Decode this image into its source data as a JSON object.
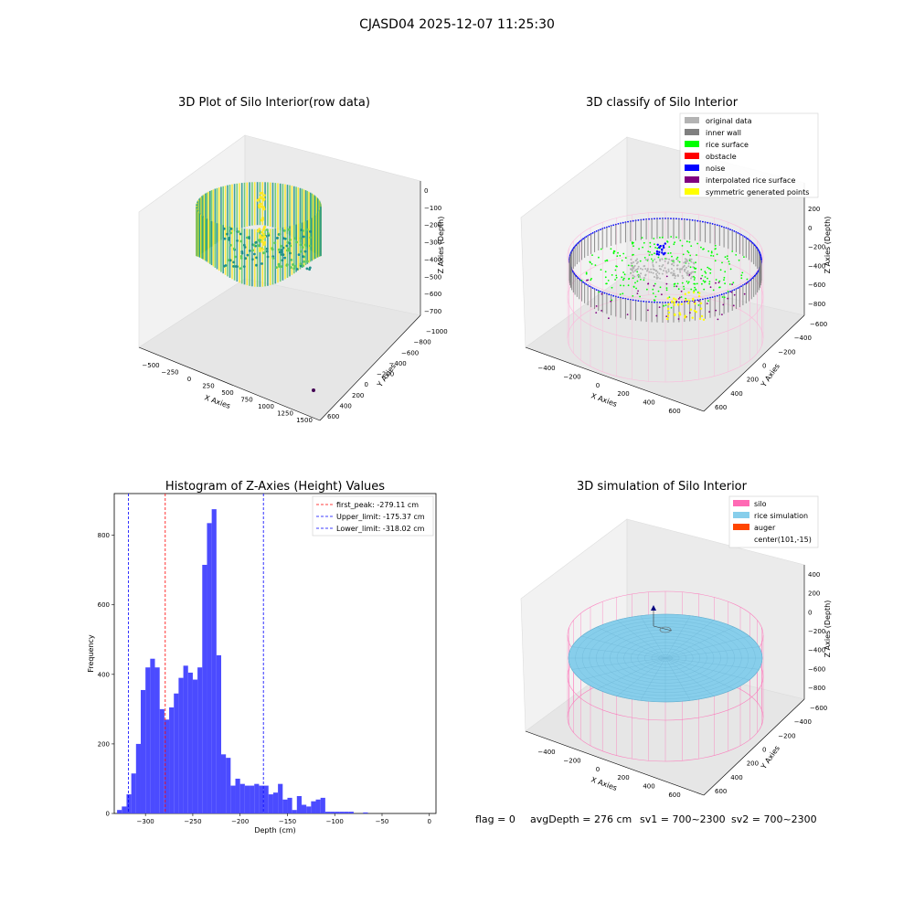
{
  "suptitle": "CJASD04 2025-12-07 11:25:30",
  "status_line": {
    "flag": "flag = 0",
    "avg_depth": "avgDepth = 276 cm",
    "sv1": "sv1 = 700~2300",
    "sv2": "sv2 = 700~2300"
  },
  "chart_data": [
    {
      "type": "scatter",
      "title": "3D Plot of Silo Interior(row data)",
      "xlabel": "X Axies",
      "ylabel": "Y Axies",
      "zlabel": "Z Axies (Depth)",
      "x_ticks": [
        "−500",
        "−250",
        "0",
        "250",
        "500",
        "750",
        "1000",
        "1250",
        "1500"
      ],
      "y_ticks": [
        "−1000",
        "−800",
        "−600",
        "−400",
        "−200",
        "0",
        "200",
        "400",
        "600"
      ],
      "z_ticks": [
        "−700",
        "−600",
        "−500",
        "−400",
        "−300",
        "−200",
        "−100",
        "0"
      ],
      "colors": {
        "high": "#fde725",
        "mid": "#21918c",
        "low": "#5ec962",
        "outlier": "#440154"
      }
    },
    {
      "type": "scatter",
      "title": "3D classify of Silo Interior",
      "xlabel": "X Axies",
      "ylabel": "Y Axies",
      "zlabel": "Z Axies (Depth)",
      "x_ticks": [
        "−400",
        "−200",
        "0",
        "200",
        "400",
        "600"
      ],
      "y_ticks": [
        "−600",
        "−400",
        "−200",
        "0",
        "200",
        "400",
        "600"
      ],
      "z_ticks": [
        "−800",
        "−600",
        "−400",
        "−200",
        "0",
        "200"
      ],
      "legend": [
        {
          "label": "original data",
          "color": "#b3b3b3"
        },
        {
          "label": "inner wall",
          "color": "#808080"
        },
        {
          "label": "rice surface",
          "color": "#00ff00"
        },
        {
          "label": "obstacle",
          "color": "#ff0000"
        },
        {
          "label": "noise",
          "color": "#0000ff"
        },
        {
          "label": "interpolated rice surface",
          "color": "#800080"
        },
        {
          "label": "symmetric generated points",
          "color": "#ffff00"
        }
      ],
      "legend_position": "top-right"
    },
    {
      "type": "bar",
      "title": "Histogram of Z-Axies (Height) Values",
      "xlabel": "Depth (cm)",
      "ylabel": "Frequency",
      "xlim": [
        -333,
        7
      ],
      "ylim": [
        0,
        920
      ],
      "bar_color": "#4b4bff",
      "x_ticks": [
        -300,
        -250,
        -200,
        -150,
        -100,
        -50,
        0
      ],
      "y_ticks": [
        0,
        200,
        400,
        600,
        800
      ],
      "bin_width": 5,
      "bins_start": [
        -330,
        -325,
        -320,
        -315,
        -310,
        -305,
        -300,
        -295,
        -290,
        -285,
        -280,
        -275,
        -270,
        -265,
        -260,
        -255,
        -250,
        -245,
        -240,
        -235,
        -230,
        -225,
        -220,
        -215,
        -210,
        -205,
        -200,
        -195,
        -190,
        -185,
        -180,
        -175,
        -170,
        -165,
        -160,
        -155,
        -150,
        -145,
        -140,
        -135,
        -130,
        -125,
        -120,
        -115,
        -110,
        -105,
        -100,
        -95,
        -90,
        -85,
        -80,
        -75,
        -70,
        -65,
        -60,
        -55,
        -50,
        -45,
        -40,
        -35,
        -30,
        -25,
        -20,
        -15,
        -10,
        -5
      ],
      "values": [
        10,
        20,
        55,
        115,
        200,
        355,
        420,
        445,
        420,
        300,
        270,
        305,
        345,
        390,
        425,
        405,
        385,
        420,
        715,
        835,
        875,
        455,
        170,
        160,
        80,
        100,
        85,
        80,
        80,
        85,
        80,
        80,
        55,
        60,
        85,
        40,
        45,
        10,
        50,
        25,
        20,
        35,
        40,
        45,
        5,
        5,
        5,
        5,
        5,
        5,
        0,
        0,
        3,
        0,
        0,
        0,
        0,
        0,
        0,
        0,
        0,
        0,
        0,
        0,
        0,
        0
      ],
      "vlines": [
        {
          "label": "first_peak: -279.11 cm",
          "x": -279.11,
          "color": "#ff0000"
        },
        {
          "label": "Upper_limit: -175.37 cm",
          "x": -175.37,
          "color": "#0000ff"
        },
        {
          "label": "Lower_limit: -318.02 cm",
          "x": -318.02,
          "color": "#0000ff"
        }
      ],
      "legend_position": "top-right"
    },
    {
      "type": "scatter",
      "title": "3D simulation of Silo Interior",
      "xlabel": "X Axies",
      "ylabel": "Y Axies",
      "zlabel": "Z Axies (Depth)",
      "x_ticks": [
        "−400",
        "−200",
        "0",
        "200",
        "400",
        "600"
      ],
      "y_ticks": [
        "−600",
        "−400",
        "−200",
        "0",
        "200",
        "400",
        "600"
      ],
      "z_ticks": [
        "−800",
        "−600",
        "−400",
        "−200",
        "0",
        "200",
        "400"
      ],
      "legend": [
        {
          "label": "silo",
          "color": "#ff69b4"
        },
        {
          "label": "rice simulation",
          "color": "#87ceeb"
        },
        {
          "label": "auger",
          "color": "#ff4500"
        },
        {
          "label": "center(101,-15)",
          "color": ""
        }
      ],
      "legend_position": "top-right"
    }
  ]
}
